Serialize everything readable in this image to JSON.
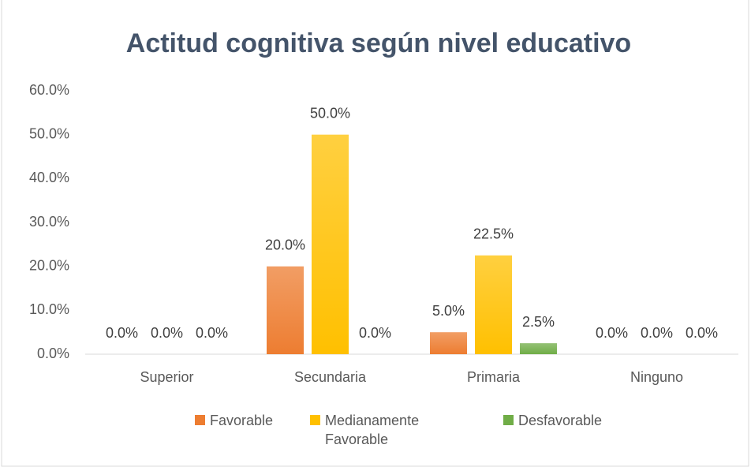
{
  "chart_data": {
    "type": "bar",
    "title": "Actitud cognitiva según nivel educativo",
    "categories": [
      "Superior",
      "Secundaria",
      "Primaria",
      "Ninguno"
    ],
    "series": [
      {
        "name": "Favorable",
        "color": "#ed7d31",
        "values": [
          0,
          20,
          5,
          0
        ],
        "value_labels": [
          "0.0%",
          "20.0%",
          "5.0%",
          "0.0%"
        ]
      },
      {
        "name": "Medianamente Favorable",
        "color": "#ffc000",
        "values": [
          0,
          50,
          22.5,
          0
        ],
        "value_labels": [
          "0.0%",
          "50.0%",
          "22.5%",
          "0.0%"
        ]
      },
      {
        "name": "Desfavorable",
        "color": "#70ad47",
        "values": [
          0,
          0,
          2.5,
          0
        ],
        "value_labels": [
          "0.0%",
          "0.0%",
          "2.5%",
          "0.0%"
        ]
      }
    ],
    "ylim": [
      0,
      60
    ],
    "yticks": [
      {
        "value": 0,
        "label": "0.0%"
      },
      {
        "value": 10,
        "label": "10.0%"
      },
      {
        "value": 20,
        "label": "20.0%"
      },
      {
        "value": 30,
        "label": "30.0%"
      },
      {
        "value": 40,
        "label": "40.0%"
      },
      {
        "value": 50,
        "label": "50.0%"
      },
      {
        "value": 60,
        "label": "60.0%"
      }
    ],
    "grid": false
  }
}
